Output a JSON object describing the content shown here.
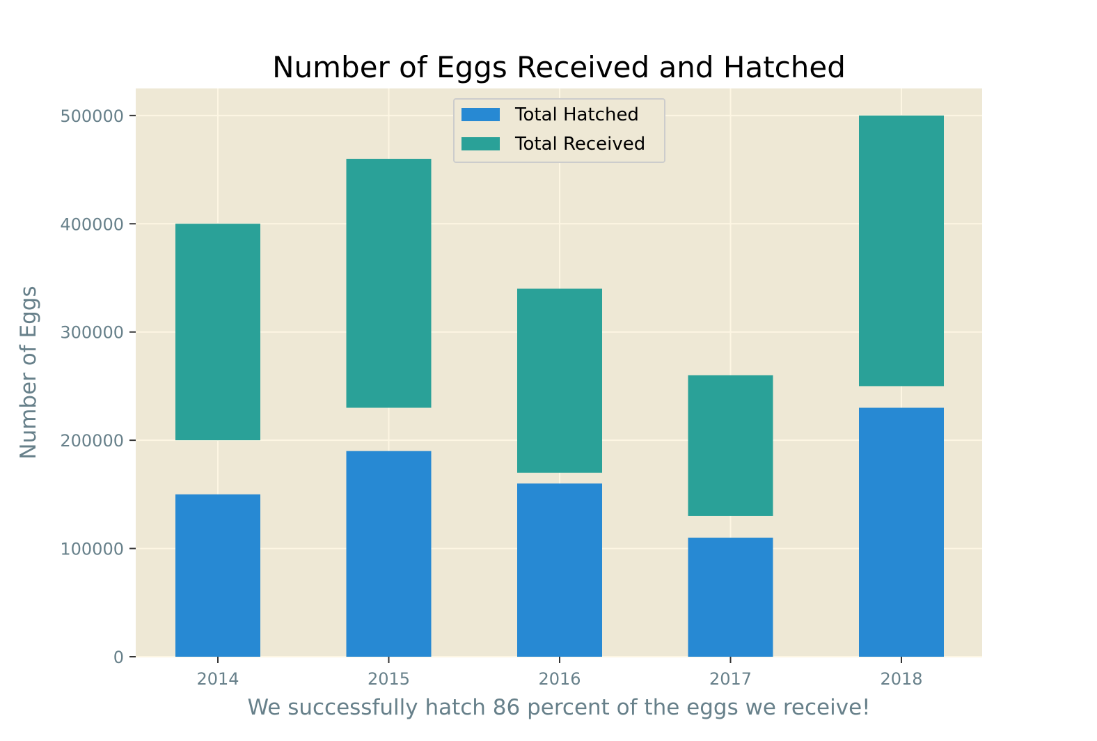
{
  "chart_data": {
    "type": "bar",
    "title": "Number of Eggs Received and Hatched",
    "xlabel": "We successfully hatch 86 percent of the eggs we receive!",
    "ylabel": "Number of Eggs",
    "categories": [
      "2014",
      "2015",
      "2016",
      "2017",
      "2018"
    ],
    "ylim": [
      0,
      525000
    ],
    "yticks": [
      0,
      100000,
      200000,
      300000,
      400000,
      500000
    ],
    "ytick_labels": [
      "0",
      "100000",
      "200000",
      "300000",
      "400000",
      "500000"
    ],
    "grid": true,
    "legend_position": "top-center",
    "series": [
      {
        "name": "Total Hatched",
        "color": "#2789d3",
        "bars": [
          {
            "bottom": 0,
            "top": 150000
          },
          {
            "bottom": 0,
            "top": 190000
          },
          {
            "bottom": 0,
            "top": 160000
          },
          {
            "bottom": 0,
            "top": 110000
          },
          {
            "bottom": 0,
            "top": 230000
          }
        ]
      },
      {
        "name": "Total Received",
        "color": "#2aa198",
        "bars": [
          {
            "bottom": 200000,
            "top": 400000
          },
          {
            "bottom": 230000,
            "top": 460000
          },
          {
            "bottom": 170000,
            "top": 340000
          },
          {
            "bottom": 130000,
            "top": 260000
          },
          {
            "bottom": 250000,
            "top": 500000
          }
        ]
      }
    ],
    "colors": {
      "plot_background": "#eee8d5",
      "grid": "#fdf6e3",
      "tick_text": "#67808a"
    }
  }
}
